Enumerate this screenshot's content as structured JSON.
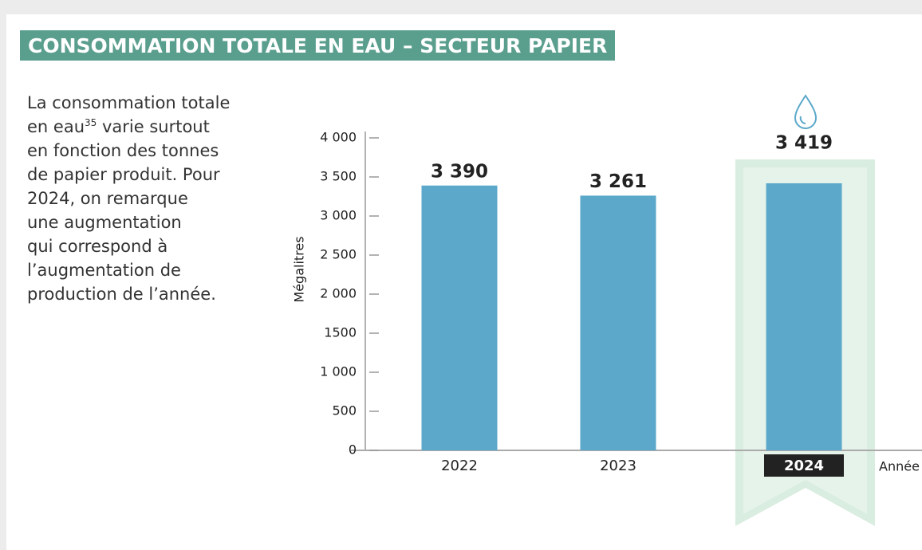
{
  "title": "CONSOMMATION TOTALE EN EAU – SECTEUR PAPIER",
  "description": {
    "line1": "La consommation totale",
    "line2a": "en eau",
    "footnote": "35",
    "line2b": "varie surtout",
    "rest": [
      "en fonction des tonnes",
      "de papier produit. Pour",
      "2024, on remarque",
      "une augmentation",
      "qui correspond à",
      "l’augmentation de",
      "production de l’année."
    ]
  },
  "chart_data": {
    "type": "bar",
    "categories": [
      "2022",
      "2023",
      "2024"
    ],
    "values": [
      3390,
      3261,
      3419
    ],
    "value_labels": [
      "3 390",
      "3 261",
      "3 419"
    ],
    "color": "#5ba8ca",
    "highlight": "2024",
    "ylabel": "Mégalitres",
    "xlabel": "Année",
    "ylim": [
      0,
      4000
    ],
    "yticks": [
      0,
      500,
      {
        "value": 1000,
        "label": "1 000"
      },
      1500,
      {
        "value": 2000,
        "label": "2 000"
      },
      {
        "value": 2500,
        "label": "2 500"
      },
      {
        "value": 3000,
        "label": "3 000"
      },
      {
        "value": 3500,
        "label": "3 500"
      },
      {
        "value": 4000,
        "label": "4 000"
      }
    ]
  }
}
